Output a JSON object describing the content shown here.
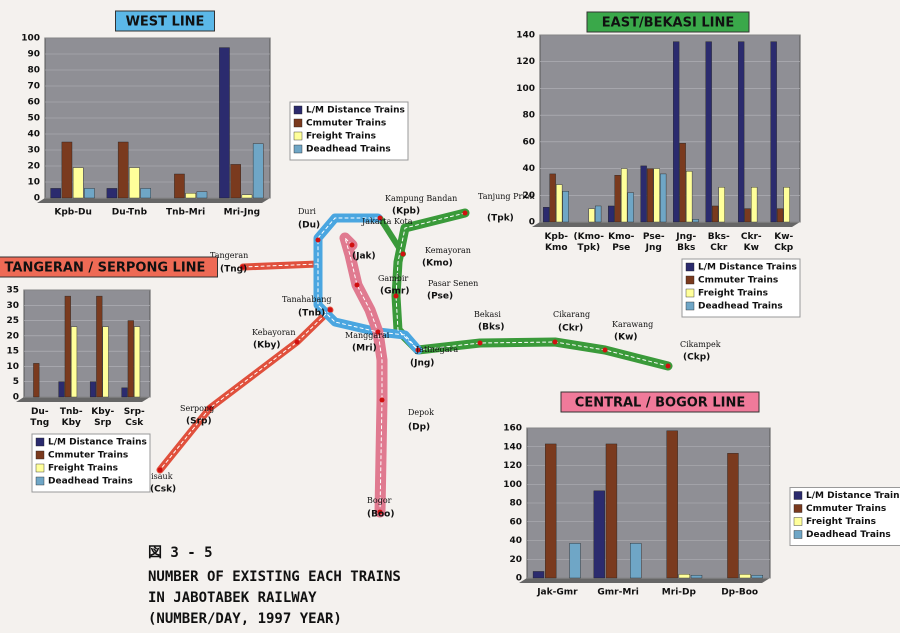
{
  "chart_data": [
    {
      "type": "bar",
      "title": "WEST LINE",
      "title_color": "#5bb8e8",
      "categories": [
        "Kpb-Du",
        "Du-Tnb",
        "Tnb-Mri",
        "Mri-Jng"
      ],
      "series": [
        {
          "name": "L/M Distance Trains",
          "color": "#2b2b6e",
          "values": [
            6,
            6,
            0,
            94
          ]
        },
        {
          "name": "Cmmuter Trains",
          "color": "#7a3a1e",
          "values": [
            35,
            35,
            15,
            21
          ]
        },
        {
          "name": "Freight Trains",
          "color": "#ffff9a",
          "values": [
            19,
            19,
            3,
            2
          ]
        },
        {
          "name": "Deadhead Trains",
          "color": "#6fa6c6",
          "values": [
            6,
            6,
            4,
            34
          ]
        }
      ],
      "ylim": [
        0,
        100
      ],
      "yticks": [
        0,
        10,
        20,
        30,
        40,
        50,
        60,
        70,
        80,
        90,
        100
      ],
      "legend": "right"
    },
    {
      "type": "bar",
      "title": "EAST/BEKASI LINE",
      "title_color": "#3aa84a",
      "categories": [
        "Kpb-Kmo",
        "(Kmo-Tpk)",
        "Kmo-Pse",
        "Pse-Jng",
        "Jng-Bks",
        "Bks-Ckr",
        "Ckr-Kw",
        "Kw-Ckp"
      ],
      "series": [
        {
          "name": "L/M Distance Trains",
          "color": "#2b2b6e",
          "values": [
            11,
            0,
            12,
            42,
            135,
            135,
            135,
            135
          ]
        },
        {
          "name": "Cmmuter Trains",
          "color": "#7a3a1e",
          "values": [
            36,
            0,
            35,
            40,
            59,
            12,
            10,
            10
          ]
        },
        {
          "name": "Freight Trains",
          "color": "#ffff9a",
          "values": [
            28,
            10,
            40,
            40,
            38,
            26,
            26,
            26
          ]
        },
        {
          "name": "Deadhead Trains",
          "color": "#6fa6c6",
          "values": [
            23,
            12,
            22,
            36,
            2,
            0,
            0,
            0
          ]
        }
      ],
      "ylim": [
        0,
        140
      ],
      "yticks": [
        0,
        20,
        40,
        60,
        80,
        100,
        120,
        140
      ],
      "legend": "bottom"
    },
    {
      "type": "bar",
      "title": "TANGERAN / SERPONG LINE",
      "title_color": "#ee6a55",
      "categories": [
        "Du-Tng",
        "Tnb-Kby",
        "Kby-Srp",
        "Srp-Csk"
      ],
      "series": [
        {
          "name": "L/M Distance Trains",
          "color": "#2b2b6e",
          "values": [
            0,
            5,
            5,
            3
          ]
        },
        {
          "name": "Cmmuter Trains",
          "color": "#7a3a1e",
          "values": [
            11,
            33,
            33,
            25
          ]
        },
        {
          "name": "Freight Trains",
          "color": "#ffff9a",
          "values": [
            0,
            23,
            23,
            23
          ]
        },
        {
          "name": "Deadhead Trains",
          "color": "#6fa6c6",
          "values": [
            0,
            0,
            0,
            0
          ]
        }
      ],
      "ylim": [
        0,
        35
      ],
      "yticks": [
        0,
        5,
        10,
        15,
        20,
        25,
        30,
        35
      ],
      "legend": "bottom"
    },
    {
      "type": "bar",
      "title": "CENTRAL / BOGOR LINE",
      "title_color": "#f07a9a",
      "categories": [
        "Jak-Gmr",
        "Gmr-Mri",
        "Mri-Dp",
        "Dp-Boo"
      ],
      "series": [
        {
          "name": "L/M Distance Trains",
          "color": "#2b2b6e",
          "values": [
            7,
            93,
            0,
            0
          ]
        },
        {
          "name": "Cmmuter Trains",
          "color": "#7a3a1e",
          "values": [
            143,
            143,
            157,
            133
          ]
        },
        {
          "name": "Freight Trains",
          "color": "#ffff9a",
          "values": [
            0,
            0,
            4,
            4
          ]
        },
        {
          "name": "Deadhead Trains",
          "color": "#6fa6c6",
          "values": [
            37,
            37,
            3,
            3
          ]
        }
      ],
      "ylim": [
        0,
        160
      ],
      "yticks": [
        0,
        20,
        40,
        60,
        80,
        100,
        120,
        140,
        160
      ],
      "legend": "right"
    }
  ],
  "map": {
    "stations": [
      {
        "name": "Kampung Bandan",
        "code": "(Kpb)"
      },
      {
        "name": "Tanjung Priok",
        "code": "(Tpk)"
      },
      {
        "name": "Duri",
        "code": "(Du)"
      },
      {
        "name": "Jakarta Kota",
        "code": "(Jak)"
      },
      {
        "name": "Kemayoran",
        "code": "(Kmo)"
      },
      {
        "name": "Tangeran",
        "code": "(Tng)"
      },
      {
        "name": "Gambir",
        "code": "(Gmr)"
      },
      {
        "name": "Pasar Senen",
        "code": "(Pse)"
      },
      {
        "name": "Tanahabang",
        "code": "(Tnb)"
      },
      {
        "name": "Kebayoran",
        "code": "(Kby)"
      },
      {
        "name": "Manggarai",
        "code": "(Mri)"
      },
      {
        "name": "Jatinegara",
        "code": "(Jng)"
      },
      {
        "name": "Bekasi",
        "code": "(Bks)"
      },
      {
        "name": "Cikarang",
        "code": "(Ckr)"
      },
      {
        "name": "Karawang",
        "code": "(Kw)"
      },
      {
        "name": "Cikampek",
        "code": "(Ckp)"
      },
      {
        "name": "Serpong",
        "code": "(Srp)"
      },
      {
        "name": "Cisauk",
        "code": "(Csk)"
      },
      {
        "name": "Depok",
        "code": "(Dp)"
      },
      {
        "name": "Bogor",
        "code": "(Boo)"
      }
    ]
  },
  "caption": {
    "figure": "図 3 - 5",
    "lines": [
      "NUMBER OF EXISTING EACH TRAINS",
      "IN JABOTABEK RAILWAY",
      "(NUMBER/DAY, 1997 YEAR)"
    ]
  }
}
